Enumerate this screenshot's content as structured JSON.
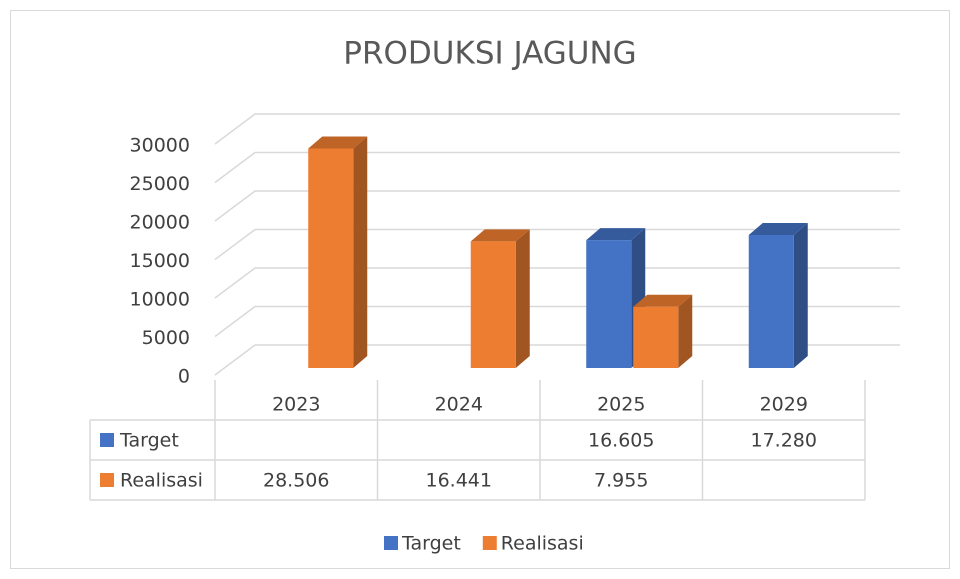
{
  "chart_data": {
    "type": "bar3d",
    "title": "PRODUKSI JAGUNG",
    "categories": [
      "2023",
      "2024",
      "2025",
      "2029"
    ],
    "series": [
      {
        "name": "Target",
        "color": "#4472c4",
        "values": [
          null,
          null,
          16605,
          17280
        ],
        "value_labels": [
          null,
          null,
          "16.605",
          "17.280"
        ]
      },
      {
        "name": "Realisasi",
        "color": "#ed7d31",
        "values": [
          28506,
          16441,
          7955,
          null
        ],
        "value_labels": [
          "28.506",
          "16.441",
          "7.955",
          null
        ]
      }
    ],
    "ylim": [
      0,
      30000
    ],
    "yticks": [
      0,
      5000,
      10000,
      15000,
      20000,
      25000,
      30000
    ],
    "grid": true,
    "legend": "bottom"
  }
}
